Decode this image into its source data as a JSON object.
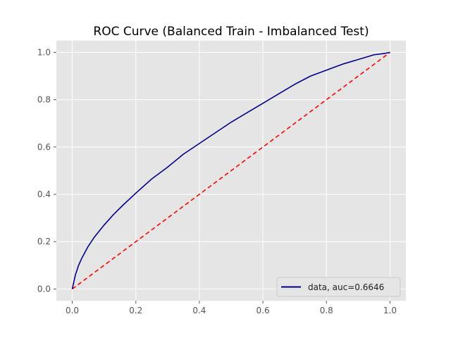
{
  "chart_data": {
    "type": "line",
    "title": "ROC Curve (Balanced Train - Imbalanced Test)",
    "xlabel": "",
    "ylabel": "",
    "xlim": [
      -0.05,
      1.05
    ],
    "ylim": [
      -0.05,
      1.05
    ],
    "x_ticks": [
      "0.0",
      "0.2",
      "0.4",
      "0.6",
      "0.8",
      "1.0"
    ],
    "y_ticks": [
      "0.0",
      "0.2",
      "0.4",
      "0.6",
      "0.8",
      "1.0"
    ],
    "grid": true,
    "legend_position": "lower-right",
    "series": [
      {
        "name": "data, auc=0.6646",
        "color": "#00008b",
        "style": "solid",
        "x": [
          0.0,
          0.005,
          0.01,
          0.02,
          0.03,
          0.05,
          0.07,
          0.1,
          0.13,
          0.16,
          0.2,
          0.25,
          0.3,
          0.35,
          0.4,
          0.45,
          0.5,
          0.55,
          0.6,
          0.65,
          0.7,
          0.75,
          0.8,
          0.85,
          0.9,
          0.95,
          0.98,
          1.0
        ],
        "y": [
          0.0,
          0.03,
          0.06,
          0.1,
          0.13,
          0.18,
          0.22,
          0.27,
          0.315,
          0.355,
          0.405,
          0.465,
          0.515,
          0.57,
          0.615,
          0.66,
          0.705,
          0.745,
          0.785,
          0.825,
          0.865,
          0.9,
          0.925,
          0.95,
          0.97,
          0.99,
          0.995,
          1.0
        ]
      },
      {
        "name": "",
        "color": "#ff0000",
        "style": "dashed",
        "x": [
          0.0,
          1.0
        ],
        "y": [
          0.0,
          1.0
        ]
      }
    ]
  }
}
